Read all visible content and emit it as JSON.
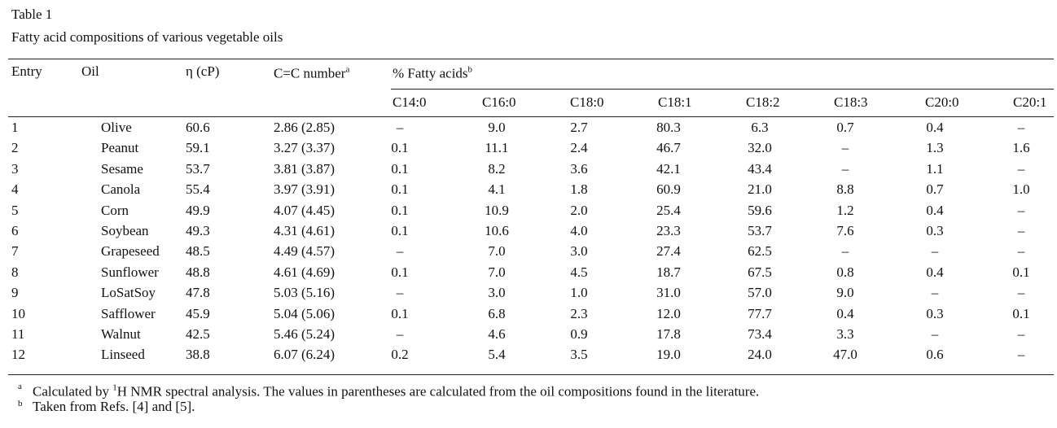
{
  "table_label": "Table 1",
  "caption": "Fatty acid compositions of various vegetable oils",
  "header": {
    "entry": "Entry",
    "oil": "Oil",
    "viscosity": "η (cP)",
    "cc": "C=C number",
    "cc_note": "a",
    "acids": "% Fatty acids",
    "acids_note": "b",
    "acid_columns": [
      "C14:0",
      "C16:0",
      "C18:0",
      "C18:1",
      "C18:2",
      "C18:3",
      "C20:0",
      "C20:1"
    ]
  },
  "rows": [
    [
      "1",
      "Olive",
      "60.6",
      "2.86 (2.85)",
      "–",
      "9.0",
      "2.7",
      "80.3",
      "6.3",
      "0.7",
      "0.4",
      "–"
    ],
    [
      "2",
      "Peanut",
      "59.1",
      "3.27 (3.37)",
      "0.1",
      "11.1",
      "2.4",
      "46.7",
      "32.0",
      "–",
      "1.3",
      "1.6"
    ],
    [
      "3",
      "Sesame",
      "53.7",
      "3.81 (3.87)",
      "0.1",
      "8.2",
      "3.6",
      "42.1",
      "43.4",
      "–",
      "1.1",
      "–"
    ],
    [
      "4",
      "Canola",
      "55.4",
      "3.97 (3.91)",
      "0.1",
      "4.1",
      "1.8",
      "60.9",
      "21.0",
      "8.8",
      "0.7",
      "1.0"
    ],
    [
      "5",
      "Corn",
      "49.9",
      "4.07 (4.45)",
      "0.1",
      "10.9",
      "2.0",
      "25.4",
      "59.6",
      "1.2",
      "0.4",
      "–"
    ],
    [
      "6",
      "Soybean",
      "49.3",
      "4.31 (4.61)",
      "0.1",
      "10.6",
      "4.0",
      "23.3",
      "53.7",
      "7.6",
      "0.3",
      "–"
    ],
    [
      "7",
      "Grapeseed",
      "48.5",
      "4.49 (4.57)",
      "–",
      "7.0",
      "3.0",
      "27.4",
      "62.5",
      "–",
      "–",
      "–"
    ],
    [
      "8",
      "Sunflower",
      "48.8",
      "4.61 (4.69)",
      "0.1",
      "7.0",
      "4.5",
      "18.7",
      "67.5",
      "0.8",
      "0.4",
      "0.1"
    ],
    [
      "9",
      "LoSatSoy",
      "47.8",
      "5.03 (5.16)",
      "–",
      "3.0",
      "1.0",
      "31.0",
      "57.0",
      "9.0",
      "–",
      "–"
    ],
    [
      "10",
      "Safflower",
      "45.9",
      "5.04 (5.06)",
      "0.1",
      "6.8",
      "2.3",
      "12.0",
      "77.7",
      "0.4",
      "0.3",
      "0.1"
    ],
    [
      "11",
      "Walnut",
      "42.5",
      "5.46 (5.24)",
      "–",
      "4.6",
      "0.9",
      "17.8",
      "73.4",
      "3.3",
      "–",
      "–"
    ],
    [
      "12",
      "Linseed",
      "38.8",
      "6.07 (6.24)",
      "0.2",
      "5.4",
      "3.5",
      "19.0",
      "24.0",
      "47.0",
      "0.6",
      "–"
    ]
  ],
  "footnotes": [
    {
      "marker": "a",
      "parts": [
        "Calculated by ",
        "1",
        "H NMR spectral analysis. The values in parentheses are calculated from the oil compositions found in the literature."
      ]
    },
    {
      "marker": "b",
      "parts": [
        "Taken from Refs. [4] and [5]."
      ]
    }
  ]
}
